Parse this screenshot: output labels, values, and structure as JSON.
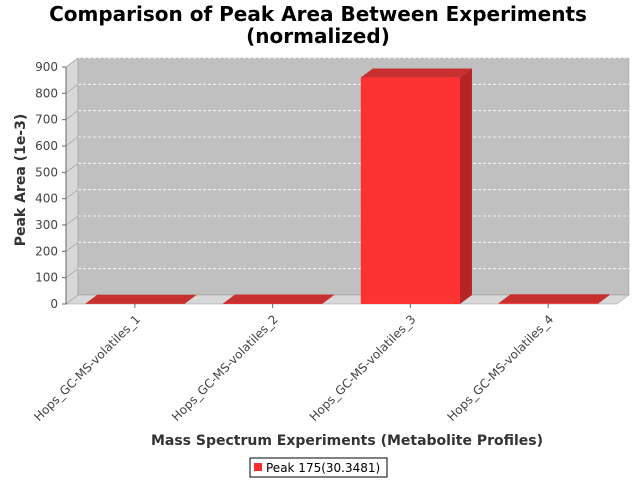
{
  "chart_data": {
    "type": "bar",
    "title_line1": "Comparison of Peak Area Between Experiments",
    "title_line2": "(normalized)",
    "xlabel": "Mass Spectrum Experiments (Metabolite Profiles)",
    "ylabel": "Peak Area (1e-3)",
    "categories": [
      "Hops_GC-MS-volatiles_1",
      "Hops_GC-MS-volatiles_2",
      "Hops_GC-MS-volatiles_3",
      "Hops_GC-MS-volatiles_4"
    ],
    "series": [
      {
        "name": "Peak 175(30.3481)",
        "color": "#ff2a2a",
        "values": [
          1,
          2,
          860,
          3
        ]
      }
    ],
    "ylim": [
      0,
      900
    ],
    "yticks": [
      0,
      100,
      200,
      300,
      400,
      500,
      600,
      700,
      800,
      900
    ],
    "grid": true,
    "legend_position": "bottom-center",
    "style": "3d-bar"
  }
}
